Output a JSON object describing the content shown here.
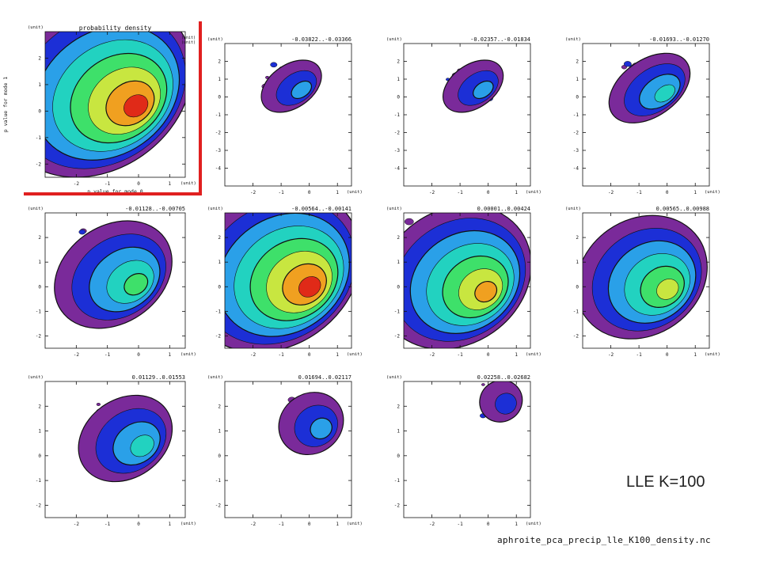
{
  "figure_label": "LLE K=100",
  "filename": "aphroite_pca_precip_lle_K100_density.nc",
  "highlight_color": "#e02020",
  "contour_colors": [
    "#7a2a9a",
    "#1c2fd6",
    "#2aa0e8",
    "#22d2c0",
    "#3ee06a",
    "#c8e640",
    "#f0a020",
    "#e02a18"
  ],
  "unit_label": "(unit)",
  "chart_data": [
    {
      "type": "heatmap",
      "title": "probability density",
      "xlabel": "p value for mode 0",
      "ylabel": "p value for mode 1",
      "unit_notes": [
        "(unit)",
        "(unit)"
      ],
      "xlim": [
        -3,
        1.5
      ],
      "ylim": [
        -2.5,
        3
      ],
      "xticks": [
        -2,
        -1,
        0,
        1
      ],
      "yticks": [
        -2,
        -1,
        0,
        1,
        2
      ],
      "peak": [
        0.1,
        0.1
      ],
      "level": 7
    },
    {
      "type": "heatmap",
      "title": "-0.03822..-0.03366",
      "xlim": [
        -3,
        1.5
      ],
      "ylim": [
        -5,
        3
      ],
      "xticks": [
        -2,
        -1,
        0,
        1
      ],
      "yticks": [
        -4,
        -3,
        -2,
        -1,
        0,
        1,
        2
      ],
      "peak": [
        -0.1,
        0.3
      ],
      "level": 2
    },
    {
      "type": "heatmap",
      "title": "-0.02357..-0.01834",
      "xlim": [
        -3,
        1.5
      ],
      "ylim": [
        -5,
        3
      ],
      "xticks": [
        -2,
        -1,
        0,
        1
      ],
      "yticks": [
        -4,
        -3,
        -2,
        -1,
        0,
        1,
        2
      ],
      "peak": [
        0.0,
        0.3
      ],
      "level": 2
    },
    {
      "type": "heatmap",
      "title": "-0.01693..-0.01270",
      "xlim": [
        -3,
        1.5
      ],
      "ylim": [
        -5,
        3
      ],
      "xticks": [
        -2,
        -1,
        0,
        1
      ],
      "yticks": [
        -4,
        -3,
        -2,
        -1,
        0,
        1,
        2
      ],
      "peak": [
        0.1,
        0.1
      ],
      "level": 3
    },
    {
      "type": "heatmap",
      "title": "-0.01128..-0.00705",
      "xlim": [
        -3,
        1.5
      ],
      "ylim": [
        -2.5,
        3
      ],
      "xticks": [
        -2,
        -1,
        0,
        1
      ],
      "yticks": [
        -2,
        -1,
        0,
        1,
        2
      ],
      "peak": [
        0.1,
        0.0
      ],
      "level": 4
    },
    {
      "type": "heatmap",
      "title": "-0.00564..-0.00141",
      "xlim": [
        -3,
        1.5
      ],
      "ylim": [
        -2.5,
        3
      ],
      "xticks": [
        -2,
        -1,
        0,
        1
      ],
      "yticks": [
        -2,
        -1,
        0,
        1,
        2
      ],
      "peak": [
        0.2,
        -0.1
      ],
      "level": 7
    },
    {
      "type": "heatmap",
      "title": "0.00001..0.00424",
      "xlim": [
        -3,
        1.5
      ],
      "ylim": [
        -2.5,
        3
      ],
      "xticks": [
        -2,
        -1,
        0,
        1
      ],
      "yticks": [
        -2,
        -1,
        0,
        1,
        2
      ],
      "peak": [
        0.1,
        -0.3
      ],
      "level": 6
    },
    {
      "type": "heatmap",
      "title": "0.00565..0.00988",
      "xlim": [
        -3,
        1.5
      ],
      "ylim": [
        -2.5,
        3
      ],
      "xticks": [
        -2,
        -1,
        0,
        1
      ],
      "yticks": [
        -2,
        -1,
        0,
        1,
        2
      ],
      "peak": [
        0.2,
        -0.2
      ],
      "level": 5
    },
    {
      "type": "heatmap",
      "title": "0.01129..0.01553",
      "xlim": [
        -3,
        1.5
      ],
      "ylim": [
        -2.5,
        3
      ],
      "xticks": [
        -2,
        -1,
        0,
        1
      ],
      "yticks": [
        -2,
        -1,
        0,
        1,
        2
      ],
      "peak": [
        0.3,
        0.3
      ],
      "level": 3
    },
    {
      "type": "heatmap",
      "title": "0.01694..0.02117",
      "xlim": [
        -3,
        1.5
      ],
      "ylim": [
        -2.5,
        3
      ],
      "xticks": [
        -2,
        -1,
        0,
        1
      ],
      "yticks": [
        -2,
        -1,
        0,
        1,
        2
      ],
      "peak": [
        0.6,
        1.0
      ],
      "level": 2
    },
    {
      "type": "heatmap",
      "title": "0.02258..0.02682",
      "xlim": [
        -3,
        1.5
      ],
      "ylim": [
        -2.5,
        3
      ],
      "xticks": [
        -2,
        -1,
        0,
        1
      ],
      "yticks": [
        -2,
        -1,
        0,
        1,
        2
      ],
      "peak": [
        0.8,
        2.0
      ],
      "level": 1
    }
  ]
}
